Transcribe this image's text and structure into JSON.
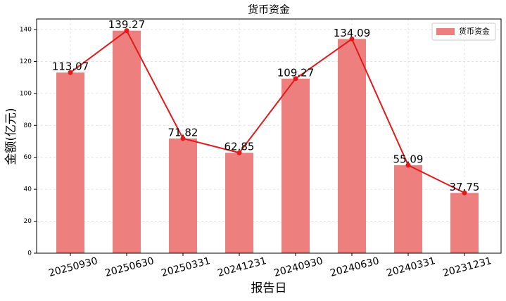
{
  "chart_data": {
    "type": "bar",
    "title": "货币资金",
    "xlabel": "报告日",
    "ylabel": "金额(亿元)",
    "categories": [
      "20250930",
      "20250630",
      "20250331",
      "20241231",
      "20240930",
      "20240630",
      "20240331",
      "20231231"
    ],
    "series": [
      {
        "name": "货币资金",
        "color": "#ee7f7f",
        "values": [
          113.07,
          139.27,
          71.82,
          62.85,
          109.27,
          134.09,
          55.09,
          37.75
        ]
      }
    ],
    "line_color": "#e31a1c",
    "ylim": [
      0,
      146.6
    ],
    "yticks": [
      0,
      20,
      40,
      60,
      80,
      100,
      120,
      140
    ],
    "grid": true,
    "legend": "upper right"
  }
}
